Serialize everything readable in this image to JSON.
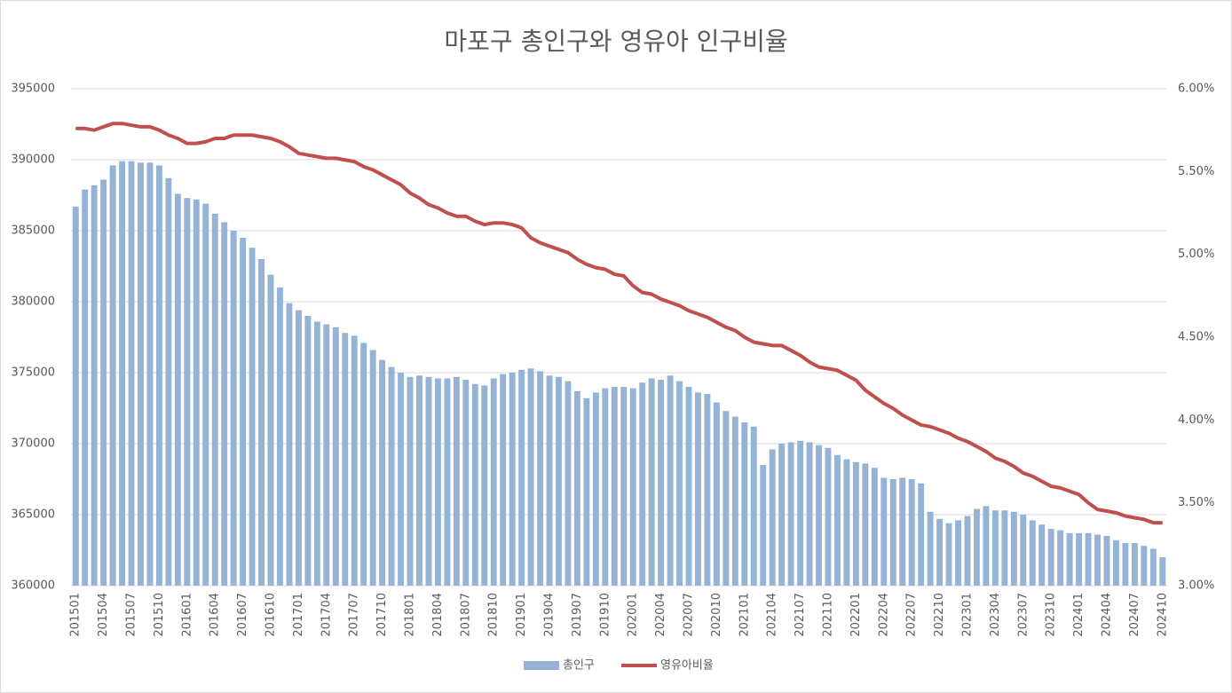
{
  "chart_data": {
    "type": "combo",
    "title": "마포구 총인구와 영유아 인구비율",
    "categories": [
      "201501",
      null,
      null,
      "201504",
      null,
      null,
      "201507",
      null,
      null,
      "201510",
      null,
      null,
      "201601",
      null,
      null,
      "201604",
      null,
      null,
      "201607",
      null,
      null,
      "201610",
      null,
      null,
      "201701",
      null,
      null,
      "201704",
      null,
      null,
      "201707",
      null,
      null,
      "201710",
      null,
      null,
      "201801",
      null,
      null,
      "201804",
      null,
      null,
      "201807",
      null,
      null,
      "201810",
      null,
      null,
      "201901",
      null,
      null,
      "201904",
      null,
      null,
      "201907",
      null,
      null,
      "201910",
      null,
      null,
      "202001",
      null,
      null,
      "202004",
      null,
      null,
      "202007",
      null,
      null,
      "202010",
      null,
      null,
      "202101",
      null,
      null,
      "202104",
      null,
      null,
      "202107",
      null,
      null,
      "202110",
      null,
      null,
      "202201",
      null,
      null,
      "202204",
      null,
      null,
      "202207",
      null,
      null,
      "202210",
      null,
      null,
      "202301",
      null,
      null,
      "202304",
      null,
      null,
      "202307",
      null,
      null,
      "202310",
      null,
      null,
      "202401",
      null,
      null,
      "202404",
      null,
      null,
      "202407",
      null,
      null,
      "202410"
    ],
    "series": [
      {
        "name": "총인구",
        "type": "bar",
        "color": "#95b3d7",
        "values": [
          386700,
          387900,
          388200,
          388600,
          389600,
          389900,
          389900,
          389800,
          389800,
          389600,
          388700,
          387600,
          387300,
          387200,
          386900,
          386200,
          385600,
          385000,
          384500,
          383800,
          383000,
          381900,
          381000,
          379900,
          379400,
          379000,
          378600,
          378400,
          378200,
          377800,
          377600,
          377100,
          376600,
          375900,
          375400,
          375000,
          374700,
          374800,
          374700,
          374600,
          374600,
          374700,
          374500,
          374200,
          374100,
          374600,
          374900,
          375000,
          375200,
          375300,
          375100,
          374800,
          374700,
          374400,
          373700,
          373200,
          373600,
          373900,
          374000,
          374000,
          373900,
          374300,
          374600,
          374500,
          374800,
          374400,
          374000,
          373600,
          373500,
          372900,
          372300,
          371900,
          371500,
          371200,
          368500,
          369600,
          370000,
          370100,
          370200,
          370100,
          369900,
          369700,
          369200,
          368900,
          368700,
          368600,
          368300,
          367600,
          367500,
          367600,
          367500,
          367200,
          365200,
          364700,
          364400,
          364600,
          364900,
          365400,
          365600,
          365300,
          365300,
          365200,
          365000,
          364600,
          364300,
          364000,
          363900,
          363700,
          363700,
          363700,
          363600,
          363500,
          363200,
          363000,
          363000,
          362800,
          362600,
          362000
        ]
      },
      {
        "name": "영유아비율",
        "type": "line",
        "axis": "y2",
        "color": "#c0504d",
        "values": [
          5.76,
          5.76,
          5.75,
          5.77,
          5.79,
          5.79,
          5.78,
          5.77,
          5.77,
          5.75,
          5.72,
          5.7,
          5.67,
          5.67,
          5.68,
          5.7,
          5.7,
          5.72,
          5.72,
          5.72,
          5.71,
          5.7,
          5.68,
          5.65,
          5.61,
          5.6,
          5.59,
          5.58,
          5.58,
          5.57,
          5.56,
          5.53,
          5.51,
          5.48,
          5.45,
          5.42,
          5.37,
          5.34,
          5.3,
          5.28,
          5.25,
          5.23,
          5.23,
          5.2,
          5.18,
          5.19,
          5.19,
          5.18,
          5.16,
          5.1,
          5.07,
          5.05,
          5.03,
          5.01,
          4.97,
          4.94,
          4.92,
          4.91,
          4.88,
          4.87,
          4.81,
          4.77,
          4.76,
          4.73,
          4.71,
          4.69,
          4.66,
          4.64,
          4.62,
          4.59,
          4.56,
          4.54,
          4.5,
          4.47,
          4.46,
          4.45,
          4.45,
          4.42,
          4.39,
          4.35,
          4.32,
          4.31,
          4.3,
          4.27,
          4.24,
          4.18,
          4.14,
          4.1,
          4.07,
          4.03,
          4.0,
          3.97,
          3.96,
          3.94,
          3.92,
          3.89,
          3.87,
          3.84,
          3.81,
          3.77,
          3.75,
          3.72,
          3.68,
          3.66,
          3.63,
          3.6,
          3.59,
          3.57,
          3.55,
          3.5,
          3.46,
          3.45,
          3.44,
          3.42,
          3.41,
          3.4,
          3.38,
          3.38
        ]
      }
    ],
    "ylim": [
      360000,
      395000
    ],
    "yticks": [
      360000,
      365000,
      370000,
      375000,
      380000,
      385000,
      390000,
      395000
    ],
    "y2lim": [
      3,
      6
    ],
    "y2ticks": [
      {
        "value": 3,
        "label": "3.00%"
      },
      {
        "value": 3.5,
        "label": "3.50%"
      },
      {
        "value": 4,
        "label": "4.00%"
      },
      {
        "value": 4.5,
        "label": "4.50%"
      },
      {
        "value": 5,
        "label": "5.00%"
      },
      {
        "value": 5.5,
        "label": "5.50%"
      },
      {
        "value": 6,
        "label": "6.00%"
      }
    ],
    "grid": true,
    "legend": "bottom"
  }
}
